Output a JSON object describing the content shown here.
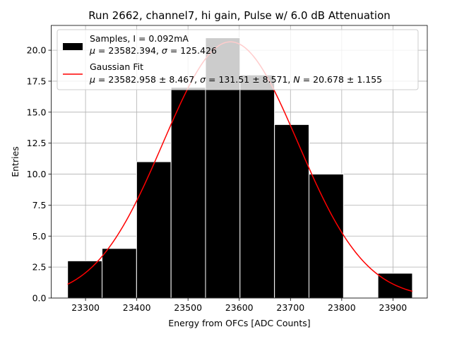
{
  "chart_data": {
    "type": "bar",
    "title": "Run 2662, channel7, hi gain, Pulse w/ 6.0 dB Attenuation",
    "xlabel": "Energy from OFCs [ADC Counts]",
    "ylabel": "Entries",
    "xlim": [
      23233,
      23967
    ],
    "ylim": [
      0,
      22
    ],
    "xticks": [
      23300,
      23400,
      23500,
      23600,
      23700,
      23800,
      23900
    ],
    "yticks": [
      0,
      2.5,
      5,
      7.5,
      10,
      12.5,
      15,
      17.5,
      20
    ],
    "ytick_labels": [
      "0.0",
      "2.5",
      "5.0",
      "7.5",
      "10.0",
      "12.5",
      "15.0",
      "17.5",
      "20.0"
    ],
    "grid": true,
    "legend_position": "top",
    "bin_edges": [
      23265,
      23332.3,
      23399.6,
      23466.9,
      23534.2,
      23601.5,
      23668.8,
      23736.1,
      23803.4,
      23870.7,
      23938
    ],
    "counts": [
      3,
      4,
      11,
      17,
      21,
      18,
      14,
      10,
      0,
      2
    ],
    "bar_color": "#000000",
    "fit_color": "#ff0000",
    "fit": {
      "mu": 23582.958,
      "sigma": 131.51,
      "N": 20.678
    },
    "legend": [
      {
        "type": "patch",
        "line1": "Samples, I = 0.092mA",
        "line2_mu_label": "μ",
        "line2_mu_value": " = 23582.394, ",
        "line2_sigma_label": "σ",
        "line2_sigma_value": " = 125.426"
      },
      {
        "type": "line",
        "line1": "Gaussian Fit",
        "line2_mu_label": "μ",
        "line2_mu_value": " = 23582.958 ± 8.467, ",
        "line2_sigma_label": "σ",
        "line2_sigma_value": " = 131.51 ± 8.571, ",
        "line2_n_label": "N",
        "line2_n_value": " = 20.678 ± 1.155"
      }
    ]
  }
}
